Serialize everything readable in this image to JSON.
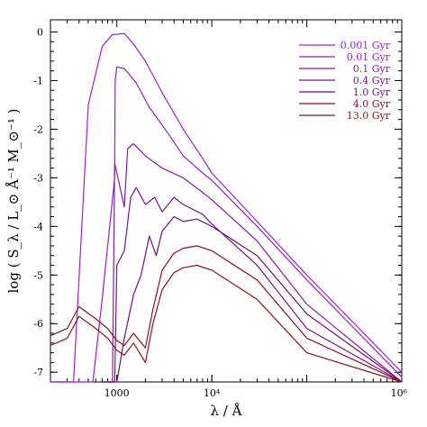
{
  "chart_data": {
    "type": "line",
    "xlabel": "λ / Å",
    "ylabel": "log ( S_λ / L_⊙ Å⁻¹ M_⊙⁻¹ )",
    "x_scale": "log",
    "xlim": [
      200,
      1000000
    ],
    "ylim": [
      -7.2,
      0.25
    ],
    "x_ticks": [
      {
        "value": 1000,
        "label": "1000"
      },
      {
        "value": 10000,
        "label": "10⁴"
      },
      {
        "value": 1000000,
        "label": "10⁶"
      }
    ],
    "y_ticks": [
      0,
      -1,
      -2,
      -3,
      -4,
      -5,
      -6,
      -7
    ],
    "legend_position": "top-right",
    "series": [
      {
        "name": "0.001 Gyr",
        "color": "#a020d8",
        "x": [
          200,
          350,
          500,
          700,
          900,
          1000,
          1200,
          1500,
          2000,
          3000,
          5000,
          8000,
          10000,
          30000,
          100000,
          1000000
        ],
        "y": [
          -7.2,
          -7.2,
          -1.5,
          -0.3,
          -0.05,
          -0.05,
          -0.03,
          -0.25,
          -0.6,
          -1.25,
          -2.0,
          -2.6,
          -2.9,
          -3.9,
          -5.0,
          -7.0
        ]
      },
      {
        "name": "0.01 Gyr",
        "color": "#9a1ec8",
        "x": [
          200,
          560,
          700,
          950,
          960,
          1000,
          1200,
          1600,
          2200,
          3500,
          5000,
          8000,
          10000,
          30000,
          100000,
          1000000
        ],
        "y": [
          -7.2,
          -7.2,
          -5.5,
          -3.0,
          -1.0,
          -0.72,
          -0.75,
          -1.05,
          -1.55,
          -2.1,
          -2.55,
          -2.9,
          -3.05,
          -4.0,
          -5.1,
          -7.1
        ]
      },
      {
        "name": "0.1 Gyr",
        "color": "#8a1aa8",
        "x": [
          700,
          900,
          950,
          1000,
          1200,
          1300,
          1500,
          2000,
          3000,
          5000,
          8000,
          10000,
          30000,
          100000,
          1000000
        ],
        "y": [
          -7.2,
          -7.2,
          -2.7,
          -2.9,
          -3.6,
          -2.4,
          -2.3,
          -2.55,
          -2.8,
          -3.0,
          -3.3,
          -3.45,
          -4.3,
          -5.6,
          -7.2
        ]
      },
      {
        "name": "0.4 Gyr",
        "color": "#781490",
        "x": [
          700,
          950,
          1000,
          1200,
          1400,
          1600,
          2000,
          2500,
          3000,
          4000,
          5000,
          8000,
          10000,
          30000,
          100000,
          1000000
        ],
        "y": [
          -7.2,
          -7.2,
          -4.8,
          -4.5,
          -3.4,
          -3.2,
          -3.55,
          -3.4,
          -3.7,
          -3.4,
          -3.55,
          -3.75,
          -3.95,
          -4.8,
          -6.1,
          -7.2
        ]
      },
      {
        "name": "1.0 Gyr",
        "color": "#6e1278",
        "x": [
          700,
          1000,
          1200,
          1500,
          1800,
          2200,
          2600,
          3000,
          4000,
          5000,
          7000,
          10000,
          30000,
          100000,
          1000000
        ],
        "y": [
          -7.2,
          -7.2,
          -6.3,
          -5.4,
          -5.0,
          -4.2,
          -4.6,
          -4.1,
          -3.8,
          -3.9,
          -3.85,
          -4.0,
          -4.6,
          -5.8,
          -7.2
        ]
      },
      {
        "name": "4.0 Gyr",
        "color": "#900c2c",
        "x": [
          200,
          300,
          400,
          600,
          800,
          1000,
          1200,
          1500,
          2000,
          2400,
          3000,
          4000,
          5000,
          7000,
          10000,
          30000,
          100000,
          1000000
        ],
        "y": [
          -6.25,
          -6.1,
          -5.65,
          -5.9,
          -6.1,
          -6.35,
          -6.45,
          -6.2,
          -6.5,
          -5.7,
          -4.9,
          -4.55,
          -4.45,
          -4.4,
          -4.5,
          -5.1,
          -6.3,
          -7.2
        ]
      },
      {
        "name": "13.0 Gyr",
        "color": "#8c1414",
        "x": [
          200,
          300,
          400,
          600,
          800,
          1000,
          1200,
          1500,
          2000,
          2400,
          3000,
          4000,
          5000,
          7000,
          10000,
          30000,
          100000,
          1000000
        ],
        "y": [
          -6.45,
          -6.3,
          -5.85,
          -6.1,
          -6.3,
          -6.55,
          -6.65,
          -6.4,
          -6.8,
          -6.0,
          -5.3,
          -4.95,
          -4.85,
          -4.8,
          -4.9,
          -5.5,
          -6.6,
          -7.2
        ]
      }
    ]
  }
}
